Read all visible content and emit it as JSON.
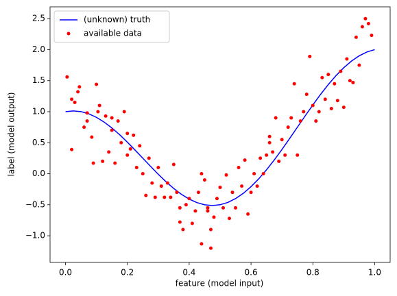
{
  "chart_data": {
    "type": "line",
    "xlabel": "feature (model input)",
    "ylabel": "label (model output)",
    "xlim": [
      -0.05,
      1.05
    ],
    "ylim": [
      -1.43,
      2.69
    ],
    "xticks": [
      {
        "value": 0,
        "label": "0.0"
      },
      0.2,
      0.4,
      0.6,
      0.8,
      {
        "value": 1,
        "label": "1.0"
      }
    ],
    "yticks": [
      {
        "value": -1,
        "label": "−1.0"
      },
      {
        "value": -0.5,
        "label": "−0.5"
      },
      {
        "value": 0,
        "label": "0.0"
      },
      0.5,
      {
        "value": 1,
        "label": "1.0"
      },
      1.5,
      {
        "value": 2,
        "label": "2.0"
      },
      2.5
    ],
    "legend": "upper left",
    "series": [
      {
        "name": "(unknown) truth",
        "type": "line",
        "color": "#0000ff",
        "x": [
          0,
          0.025,
          0.05,
          0.075,
          0.1,
          0.125,
          0.15,
          0.175,
          0.2,
          0.225,
          0.25,
          0.275,
          0.3,
          0.325,
          0.35,
          0.375,
          0.4,
          0.425,
          0.45,
          0.475,
          0.5,
          0.525,
          0.55,
          0.575,
          0.6,
          0.625,
          0.65,
          0.675,
          0.7,
          0.725,
          0.75,
          0.775,
          0.8,
          0.825,
          0.85,
          0.875,
          0.9,
          0.925,
          0.95,
          0.975,
          1
        ],
        "values": [
          1.0,
          1.013,
          1.001,
          0.966,
          0.909,
          0.832,
          0.738,
          0.629,
          0.509,
          0.381,
          0.25,
          0.119,
          -0.009,
          -0.129,
          -0.238,
          -0.332,
          -0.409,
          -0.466,
          -0.501,
          -0.513,
          -0.5,
          -0.463,
          -0.401,
          -0.316,
          -0.209,
          -0.082,
          0.062,
          0.221,
          0.391,
          0.569,
          0.75,
          0.931,
          1.109,
          1.279,
          1.438,
          1.582,
          1.709,
          1.816,
          1.901,
          1.963,
          2.0
        ]
      },
      {
        "name": "available data",
        "type": "scatter",
        "color": "#ff0000",
        "x": [
          0.005,
          0.02,
          0.02,
          0.03,
          0.04,
          0.045,
          0.06,
          0.07,
          0.085,
          0.09,
          0.1,
          0.105,
          0.11,
          0.12,
          0.13,
          0.14,
          0.15,
          0.16,
          0.17,
          0.18,
          0.19,
          0.2,
          0.21,
          0.22,
          0.23,
          0.24,
          0.25,
          0.26,
          0.27,
          0.28,
          0.29,
          0.3,
          0.31,
          0.32,
          0.33,
          0.34,
          0.35,
          0.36,
          0.37,
          0.37,
          0.38,
          0.39,
          0.4,
          0.41,
          0.42,
          0.43,
          0.44,
          0.44,
          0.45,
          0.46,
          0.47,
          0.47,
          0.48,
          0.49,
          0.5,
          0.51,
          0.52,
          0.53,
          0.54,
          0.55,
          0.56,
          0.57,
          0.58,
          0.59,
          0.6,
          0.61,
          0.62,
          0.63,
          0.64,
          0.65,
          0.66,
          0.67,
          0.68,
          0.69,
          0.7,
          0.71,
          0.72,
          0.73,
          0.74,
          0.75,
          0.76,
          0.77,
          0.78,
          0.79,
          0.8,
          0.81,
          0.82,
          0.83,
          0.84,
          0.85,
          0.86,
          0.87,
          0.88,
          0.89,
          0.9,
          0.91,
          0.92,
          0.93,
          0.94,
          0.95,
          0.96,
          0.97,
          0.98,
          0.99,
          0.07,
          0.15,
          0.2,
          0.46,
          0.66
        ],
        "values": [
          1.56,
          0.39,
          1.2,
          1.15,
          1.32,
          1.4,
          0.75,
          0.85,
          0.59,
          0.17,
          1.44,
          1.0,
          1.1,
          0.2,
          0.93,
          0.35,
          0.7,
          0.17,
          0.85,
          0.5,
          1.0,
          0.65,
          0.4,
          0.62,
          0.1,
          0.45,
          0.0,
          -0.35,
          0.25,
          -0.15,
          -0.38,
          0.1,
          -0.2,
          -0.38,
          -0.15,
          -0.38,
          0.15,
          -0.3,
          -0.55,
          -0.78,
          -0.9,
          -0.5,
          -0.4,
          -0.8,
          -0.6,
          -0.3,
          -1.13,
          0.0,
          -0.1,
          -0.55,
          -1.2,
          -0.9,
          -0.7,
          -0.4,
          -0.22,
          -0.55,
          -0.02,
          -0.72,
          -0.3,
          -0.55,
          0.1,
          -0.2,
          0.22,
          -0.65,
          -0.3,
          0.0,
          -0.2,
          0.25,
          0.0,
          0.3,
          0.5,
          0.35,
          0.9,
          0.2,
          0.55,
          0.3,
          0.75,
          0.9,
          1.45,
          0.3,
          0.85,
          1.0,
          1.28,
          1.89,
          1.1,
          0.85,
          1.0,
          1.55,
          1.2,
          1.6,
          1.05,
          1.45,
          1.18,
          1.65,
          1.07,
          1.85,
          1.5,
          1.47,
          2.2,
          1.75,
          2.37,
          2.5,
          2.42,
          2.23,
          0.98,
          0.9,
          0.3,
          -0.6,
          0.6
        ]
      }
    ]
  }
}
